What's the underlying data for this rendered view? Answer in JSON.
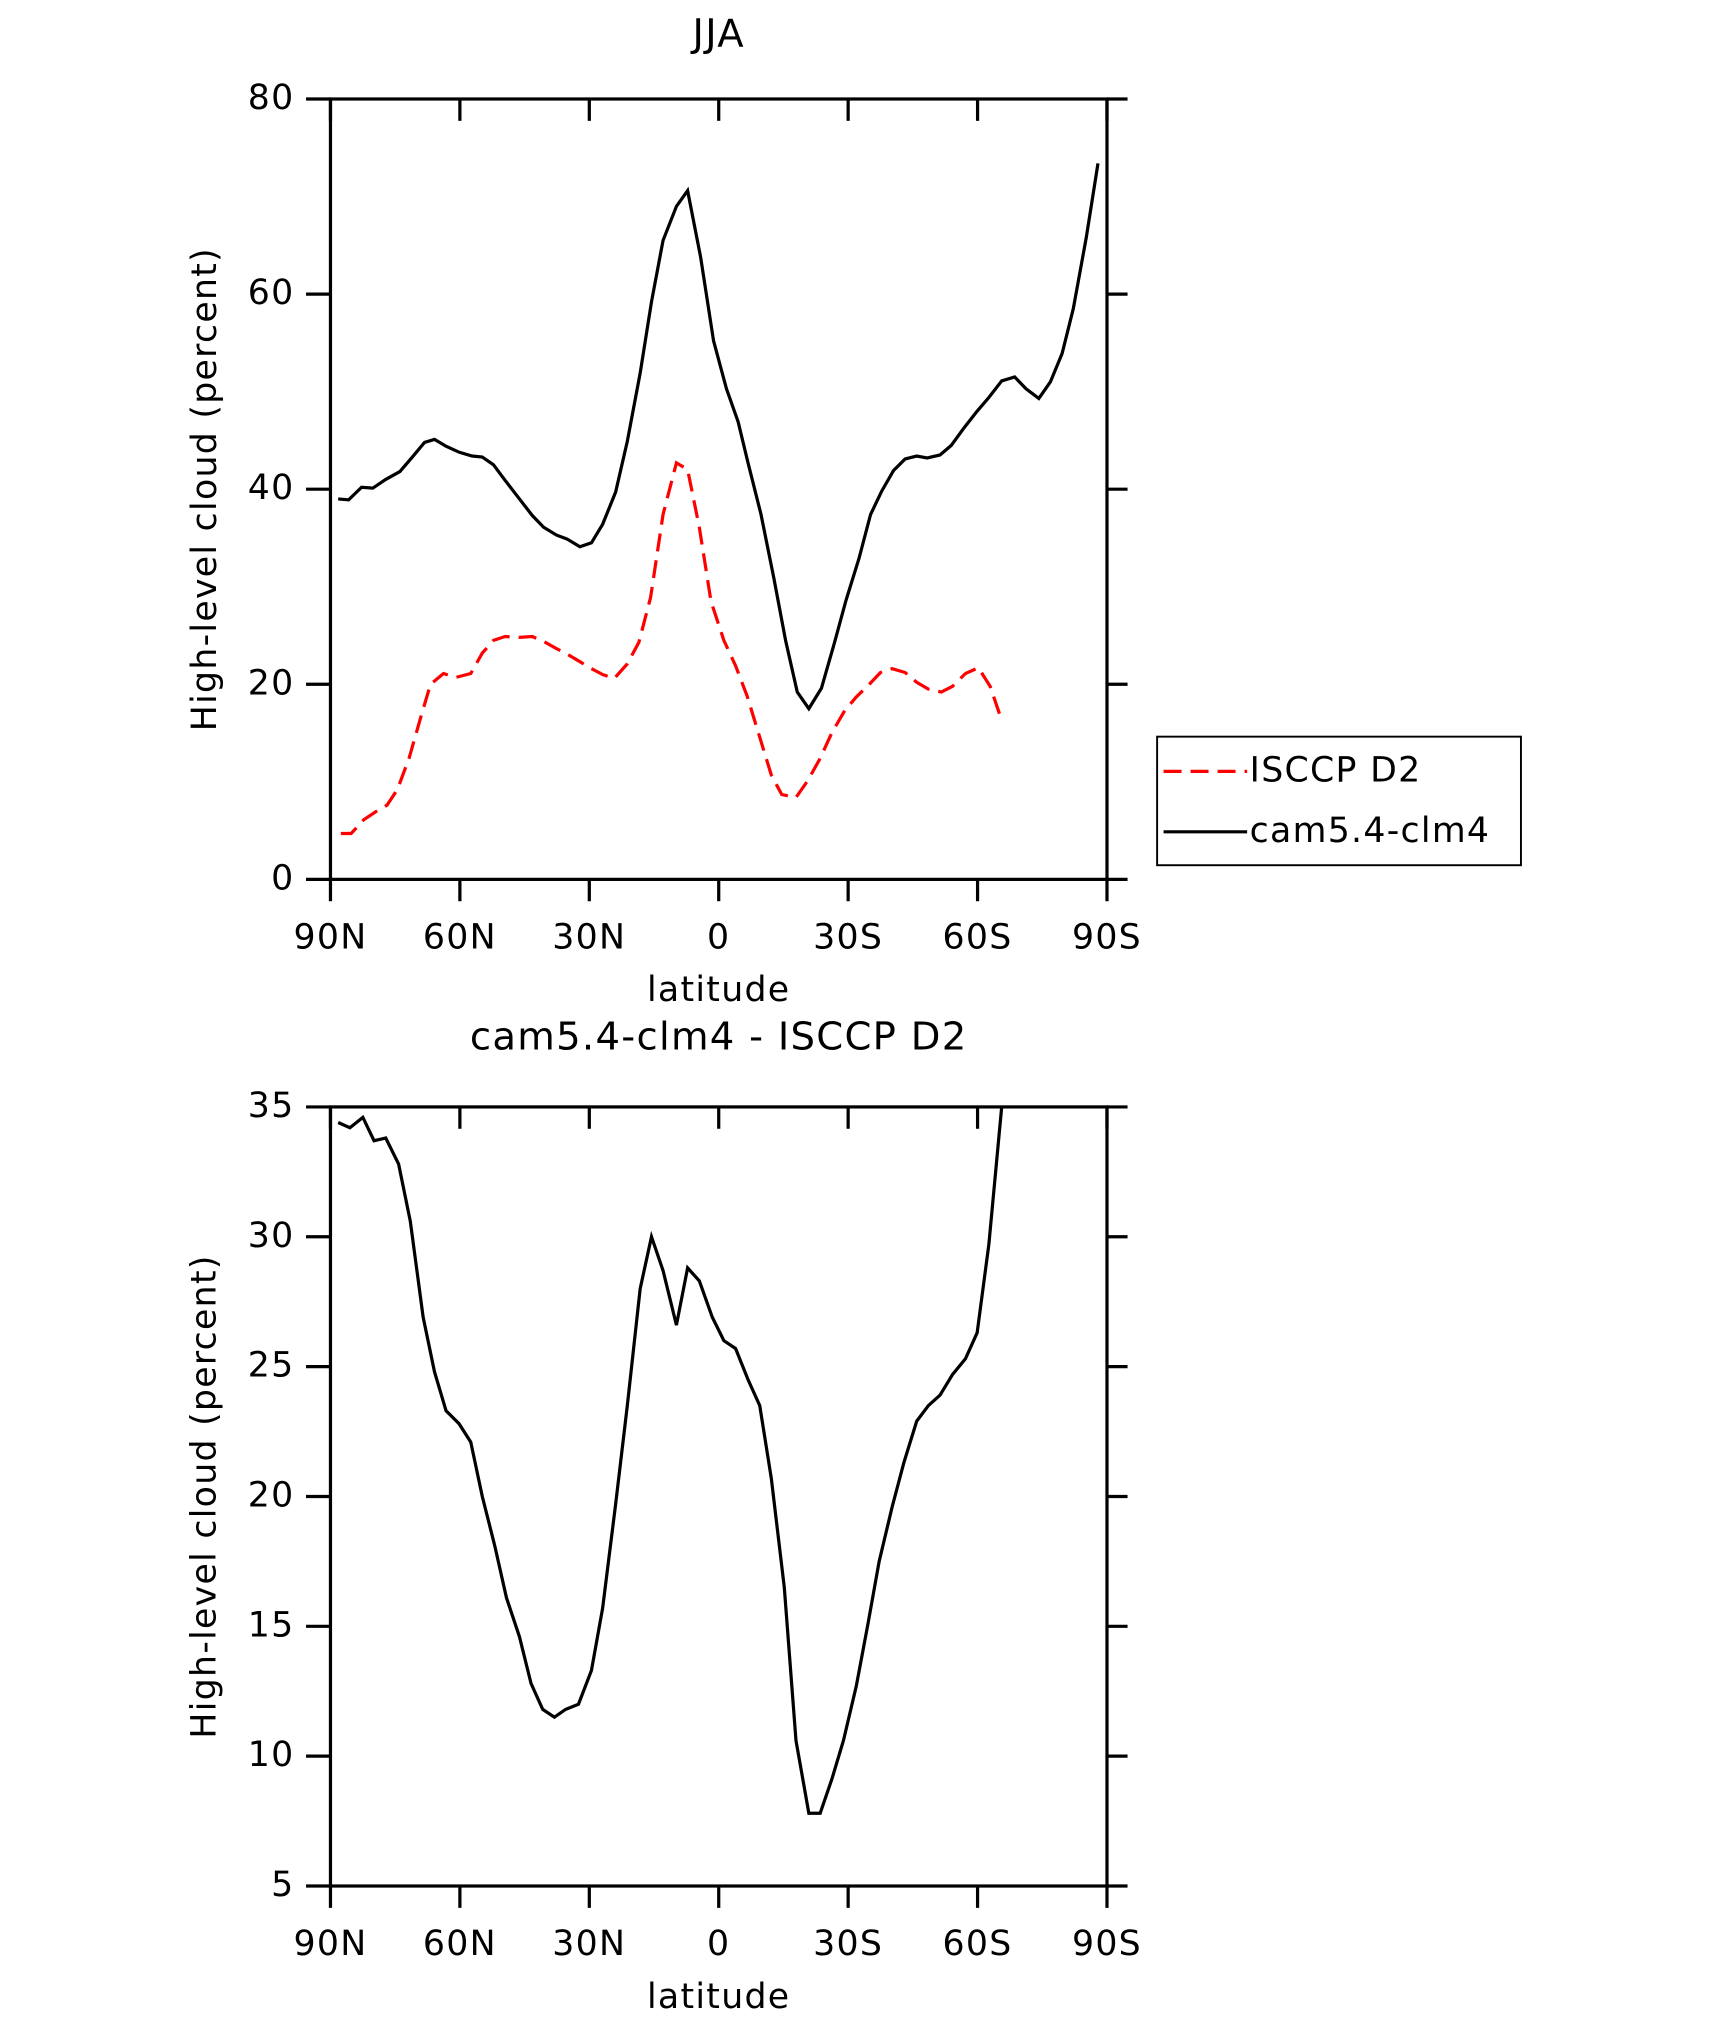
{
  "chart_data": [
    {
      "type": "line",
      "title": "JJA",
      "x_label": "latitude",
      "y_label": "High-level cloud (percent)",
      "xlim": [
        90,
        -90
      ],
      "xticks": [
        {
          "value": 90,
          "label": "90N"
        },
        {
          "value": 60,
          "label": "60N"
        },
        {
          "value": 30,
          "label": "30N"
        },
        0,
        {
          "value": -30,
          "label": "30S"
        },
        {
          "value": -60,
          "label": "60S"
        },
        {
          "value": -90,
          "label": "90S"
        }
      ],
      "ylim": [
        0,
        80
      ],
      "yticks": [
        0,
        20,
        40,
        60,
        80
      ],
      "legend": "outside-right",
      "series": [
        {
          "name": "ISCCP D2",
          "color": "#ff0000",
          "dash": true,
          "x": [
            87.6,
            85.2,
            82.3,
            79.6,
            76.9,
            74.5,
            71.8,
            69.4,
            66.8,
            63.8,
            60.9,
            57.5,
            54.8,
            52.2,
            49.5,
            46.2,
            43.2,
            40.6,
            37.8,
            35.2,
            32.5,
            29.5,
            26.9,
            24.2,
            21.2,
            18.5,
            15.8,
            12.9,
            9.8,
            7.2,
            4.5,
            1.8,
            -1.2,
            -3.9,
            -6.6,
            -9.2,
            -12.2,
            -14.6,
            -17.9,
            -20.6,
            -23.5,
            -26.2,
            -29.2,
            -31.9,
            -34.9,
            -37.5,
            -40.2,
            -43.2,
            -45.9,
            -48.6,
            -51.6,
            -54.2,
            -57.2,
            -60.2,
            -62.9,
            -65.6
          ],
          "values": [
            4.7,
            4.7,
            6.1,
            6.9,
            7.6,
            9.2,
            12.4,
            16.1,
            20.0,
            21.1,
            20.7,
            21.1,
            23.2,
            24.5,
            24.9,
            24.8,
            24.9,
            24.4,
            23.7,
            23.1,
            22.4,
            21.6,
            21.0,
            20.6,
            22.1,
            24.3,
            28.9,
            37.4,
            42.7,
            42.0,
            36.1,
            28.5,
            24.5,
            21.9,
            18.8,
            15.0,
            10.7,
            8.7,
            8.4,
            10.1,
            12.4,
            15.0,
            17.3,
            18.7,
            20.0,
            21.2,
            21.6,
            21.2,
            20.2,
            19.5,
            19.2,
            19.8,
            21.1,
            21.7,
            19.8,
            16.3
          ]
        },
        {
          "name": "cam5.4-clm4",
          "color": "#000000",
          "dash": false,
          "x": [
            88.2,
            85.8,
            82.8,
            80.2,
            77.2,
            73.9,
            71.2,
            68.2,
            65.9,
            63.2,
            60.2,
            57.2,
            54.8,
            52.2,
            49.5,
            46.2,
            43.2,
            40.6,
            37.6,
            35.2,
            32.2,
            29.5,
            26.9,
            23.9,
            21.2,
            18.2,
            15.6,
            12.9,
            9.8,
            7.2,
            4.2,
            1.2,
            -1.8,
            -4.5,
            -6.8,
            -9.8,
            -12.8,
            -15.5,
            -18.2,
            -20.9,
            -23.8,
            -26.8,
            -29.5,
            -32.5,
            -35.2,
            -37.8,
            -40.5,
            -43.2,
            -45.9,
            -48.3,
            -51.3,
            -53.9,
            -56.9,
            -59.9,
            -62.6,
            -65.6,
            -68.6,
            -71.2,
            -74.2,
            -76.9,
            -79.6,
            -82.2,
            -85.2,
            -87.9
          ],
          "values": [
            39.0,
            38.9,
            40.2,
            40.1,
            41.0,
            41.8,
            43.2,
            44.8,
            45.1,
            44.4,
            43.8,
            43.4,
            43.3,
            42.5,
            40.9,
            39.0,
            37.3,
            36.1,
            35.3,
            34.9,
            34.1,
            34.5,
            36.4,
            39.7,
            44.9,
            51.9,
            59.2,
            65.5,
            69.0,
            70.6,
            63.8,
            55.2,
            50.3,
            46.9,
            42.7,
            37.4,
            30.8,
            24.5,
            19.2,
            17.5,
            19.6,
            24.2,
            28.6,
            32.9,
            37.4,
            39.8,
            41.9,
            43.1,
            43.4,
            43.2,
            43.5,
            44.5,
            46.3,
            48.0,
            49.4,
            51.1,
            51.5,
            50.3,
            49.3,
            51.0,
            53.9,
            58.5,
            65.8,
            73.4
          ]
        }
      ]
    },
    {
      "type": "line",
      "title": "cam5.4-clm4 - ISCCP D2",
      "x_label": "latitude",
      "y_label": "High-level cloud (percent)",
      "xlim": [
        90,
        -90
      ],
      "xticks": [
        {
          "value": 90,
          "label": "90N"
        },
        {
          "value": 60,
          "label": "60N"
        },
        {
          "value": 30,
          "label": "30N"
        },
        0,
        {
          "value": -30,
          "label": "30S"
        },
        {
          "value": -60,
          "label": "60S"
        },
        {
          "value": -90,
          "label": "90S"
        }
      ],
      "ylim": [
        5,
        35
      ],
      "yticks": [
        5,
        10,
        15,
        20,
        25,
        30,
        35
      ],
      "color": "#000000",
      "x": [
        88.2,
        85.5,
        82.5,
        79.9,
        77.2,
        74.2,
        71.5,
        68.5,
        65.9,
        63.2,
        60.2,
        57.5,
        54.8,
        51.9,
        49.2,
        46.2,
        43.5,
        40.8,
        38.1,
        35.5,
        32.5,
        29.5,
        26.9,
        23.9,
        21.2,
        18.2,
        15.6,
        12.9,
        9.8,
        7.2,
        4.5,
        1.5,
        -1.2,
        -3.9,
        -6.8,
        -9.5,
        -12.2,
        -15.2,
        -17.9,
        -20.9,
        -23.5,
        -26.2,
        -28.9,
        -31.9,
        -34.6,
        -37.2,
        -40.2,
        -42.9,
        -45.9,
        -48.6,
        -51.3,
        -54.2,
        -57.2,
        -59.9,
        -62.6,
        -65.6
      ],
      "values": [
        34.4,
        34.2,
        34.6,
        33.7,
        33.8,
        32.8,
        30.6,
        26.9,
        24.8,
        23.3,
        22.8,
        22.1,
        20.0,
        18.1,
        16.1,
        14.6,
        12.8,
        11.8,
        11.5,
        11.8,
        12.0,
        13.3,
        15.7,
        19.7,
        23.5,
        28.0,
        30.0,
        28.7,
        26.6,
        28.8,
        28.3,
        26.9,
        26.0,
        25.7,
        24.5,
        23.5,
        20.7,
        16.5,
        10.6,
        7.8,
        7.8,
        9.1,
        10.6,
        12.7,
        15.1,
        17.5,
        19.6,
        21.3,
        22.9,
        23.5,
        23.9,
        24.7,
        25.3,
        26.3,
        29.7,
        35.0
      ]
    }
  ]
}
